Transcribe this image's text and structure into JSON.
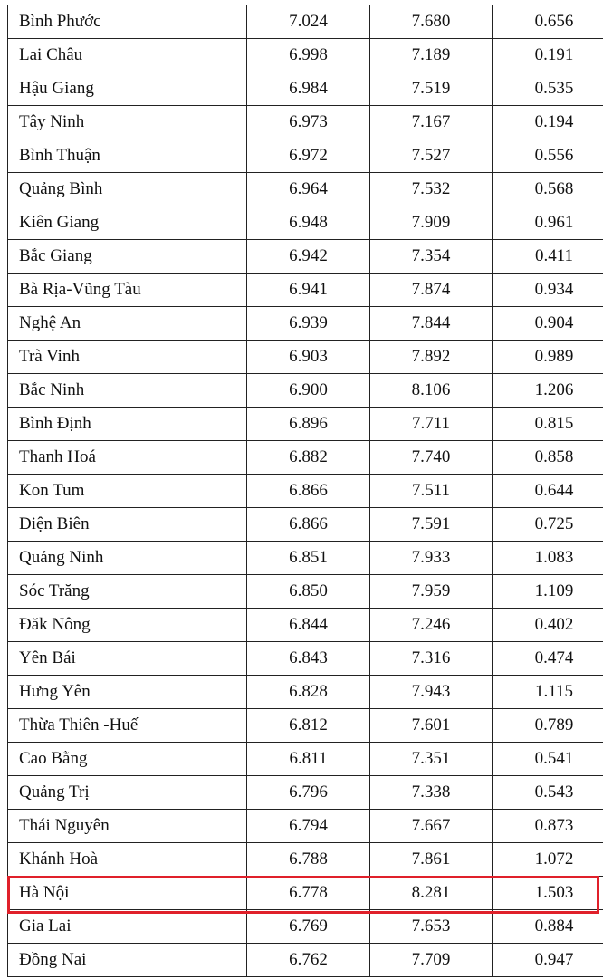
{
  "table": {
    "rows": [
      [
        "Bình Phước",
        "7.024",
        "7.680",
        "0.656"
      ],
      [
        "Lai Châu",
        "6.998",
        "7.189",
        "0.191"
      ],
      [
        "Hậu Giang",
        "6.984",
        "7.519",
        "0.535"
      ],
      [
        "Tây Ninh",
        "6.973",
        "7.167",
        "0.194"
      ],
      [
        "Bình Thuận",
        "6.972",
        "7.527",
        "0.556"
      ],
      [
        "Quảng Bình",
        "6.964",
        "7.532",
        "0.568"
      ],
      [
        "Kiên Giang",
        "6.948",
        "7.909",
        "0.961"
      ],
      [
        "Bắc Giang",
        "6.942",
        "7.354",
        "0.411"
      ],
      [
        "Bà Rịa-Vũng Tàu",
        "6.941",
        "7.874",
        "0.934"
      ],
      [
        "Nghệ An",
        "6.939",
        "7.844",
        "0.904"
      ],
      [
        "Trà Vinh",
        "6.903",
        "7.892",
        "0.989"
      ],
      [
        "Bắc Ninh",
        "6.900",
        "8.106",
        "1.206"
      ],
      [
        "Bình Định",
        "6.896",
        "7.711",
        "0.815"
      ],
      [
        "Thanh Hoá",
        "6.882",
        "7.740",
        "0.858"
      ],
      [
        "Kon Tum",
        "6.866",
        "7.511",
        "0.644"
      ],
      [
        "Điện Biên",
        "6.866",
        "7.591",
        "0.725"
      ],
      [
        "Quảng Ninh",
        "6.851",
        "7.933",
        "1.083"
      ],
      [
        "Sóc Trăng",
        "6.850",
        "7.959",
        "1.109"
      ],
      [
        "Đăk Nông",
        "6.844",
        "7.246",
        "0.402"
      ],
      [
        "Yên Bái",
        "6.843",
        "7.316",
        "0.474"
      ],
      [
        "Hưng Yên",
        "6.828",
        "7.943",
        "1.115"
      ],
      [
        "Thừa Thiên -Huế",
        "6.812",
        "7.601",
        "0.789"
      ],
      [
        "Cao Bằng",
        "6.811",
        "7.351",
        "0.541"
      ],
      [
        "Quảng Trị",
        "6.796",
        "7.338",
        "0.543"
      ],
      [
        "Thái Nguyên",
        "6.794",
        "7.667",
        "0.873"
      ],
      [
        "Khánh Hoà",
        "6.788",
        "7.861",
        "1.072"
      ],
      [
        "Hà Nội",
        "6.778",
        "8.281",
        "1.503"
      ],
      [
        "Gia Lai",
        "6.769",
        "7.653",
        "0.884"
      ],
      [
        "Đồng Nai",
        "6.762",
        "7.709",
        "0.947"
      ]
    ],
    "highlighted_row": "Hà Nội",
    "highlight_color": "#e0202a"
  }
}
